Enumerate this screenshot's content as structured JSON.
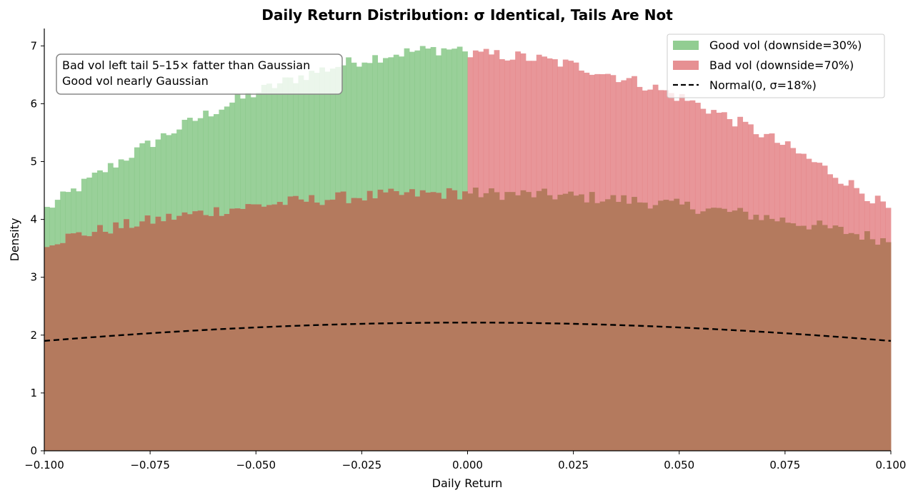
{
  "chart_data": {
    "type": "bar",
    "title": "Daily Return Distribution: σ Identical, Tails Are Not",
    "xlabel": "Daily Return",
    "ylabel": "Density",
    "xlim": [
      -0.1,
      0.1
    ],
    "ylim": [
      0,
      7.3
    ],
    "x_ticks": [
      "−0.100",
      "−0.075",
      "−0.050",
      "−0.025",
      "0.000",
      "0.025",
      "0.050",
      "0.075",
      "0.100"
    ],
    "x_tick_values": [
      -0.1,
      -0.075,
      -0.05,
      -0.025,
      0.0,
      0.025,
      0.05,
      0.075,
      0.1
    ],
    "y_ticks": [
      "0",
      "1",
      "2",
      "3",
      "4",
      "5",
      "6",
      "7"
    ],
    "y_tick_values": [
      0,
      1,
      2,
      3,
      4,
      5,
      6,
      7
    ],
    "grid": false,
    "legend_position": "top-right",
    "bins": {
      "start": -0.1,
      "end": 0.1,
      "count": 160
    },
    "series": [
      {
        "name": "Good vol (downside=30%)",
        "color": "#7fc47f",
        "shape": "asymmetric-left",
        "left_tail_density": 4.15,
        "peak_density": 6.95,
        "peak_x": -0.003,
        "right_density_at_zero": 4.45,
        "right_tail_density": 3.62
      },
      {
        "name": "Bad vol (downside=70%)",
        "color": "#e27c7f",
        "shape": "asymmetric-right",
        "left_tail_density": 3.6,
        "left_density_at_zero": 4.45,
        "peak_density": 6.85,
        "peak_x": 0.003,
        "right_tail_density": 4.15
      }
    ],
    "normal_curve": {
      "name": "Normal(0, σ=18%)",
      "mean": 0,
      "sigma": 0.18,
      "style": "dashed",
      "color": "#000000"
    },
    "overlap_color": "#b47a5e",
    "annotation": {
      "lines": [
        "Bad vol left tail 5–15× fatter than Gaussian",
        "Good vol nearly Gaussian"
      ]
    }
  }
}
